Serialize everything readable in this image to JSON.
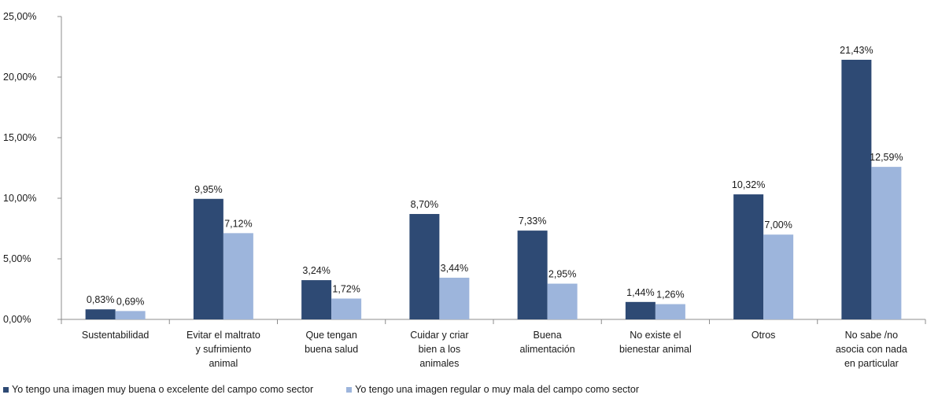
{
  "chart_data": {
    "type": "bar",
    "categories": [
      [
        "Sustentabilidad"
      ],
      [
        "Evitar el maltrato",
        "y sufrimiento",
        "animal"
      ],
      [
        "Que tengan",
        "buena salud"
      ],
      [
        "Cuidar y criar",
        "bien a los",
        "animales"
      ],
      [
        "Buena",
        "alimentación"
      ],
      [
        "No existe el",
        "bienestar animal"
      ],
      [
        "Otros"
      ],
      [
        "No sabe /no",
        "asocia con nada",
        "en particular"
      ]
    ],
    "series": [
      {
        "name": "Yo tengo una imagen muy buena o excelente del campo como sector",
        "color": "#2e4a74",
        "values": [
          0.83,
          9.95,
          3.24,
          8.7,
          7.33,
          1.44,
          10.32,
          21.43
        ],
        "labels": [
          "0,83%",
          "9,95%",
          "3,24%",
          "8,70%",
          "7,33%",
          "1,44%",
          "10,32%",
          "21,43%"
        ]
      },
      {
        "name": "Yo tengo una imagen regular o muy mala del campo como sector",
        "color": "#9db5dc",
        "values": [
          0.69,
          7.12,
          1.72,
          3.44,
          2.95,
          1.26,
          7.0,
          12.59
        ],
        "labels": [
          "0,69%",
          "7,12%",
          "1,72%",
          "3,44%",
          "2,95%",
          "1,26%",
          "7,00%",
          "12,59%"
        ]
      }
    ],
    "yticks": [
      0,
      5,
      10,
      15,
      20,
      25
    ],
    "ytick_labels": [
      "0,00%",
      "5,00%",
      "10,00%",
      "15,00%",
      "20,00%",
      "25,00%"
    ],
    "ylim": [
      0,
      25
    ],
    "grid": false,
    "legend_position": "bottom"
  }
}
